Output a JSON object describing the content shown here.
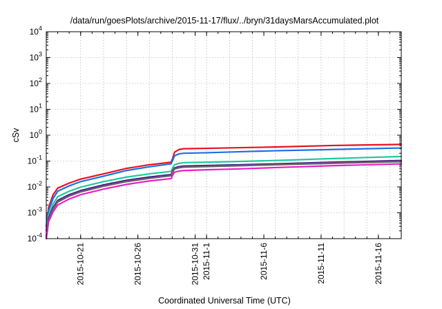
{
  "chart_data": {
    "type": "line",
    "title": "/data/run/goesPlots/archive/2015-11-17/flux/../bryn/31daysMarsAccumulated.plot",
    "xlabel": "Coordinated Universal Time (UTC)",
    "ylabel": "cSv",
    "yscale": "log",
    "ylim": [
      0.0001,
      10000
    ],
    "xlim": [
      0,
      31
    ],
    "y_ticks": [
      {
        "value": 0.0001,
        "base": "10",
        "exp": "-4"
      },
      {
        "value": 0.001,
        "base": "10",
        "exp": "-3"
      },
      {
        "value": 0.01,
        "base": "10",
        "exp": "-2"
      },
      {
        "value": 0.1,
        "base": "10",
        "exp": "-1"
      },
      {
        "value": 1,
        "base": "10",
        "exp": "0"
      },
      {
        "value": 10,
        "base": "10",
        "exp": "1"
      },
      {
        "value": 100,
        "base": "10",
        "exp": "2"
      },
      {
        "value": 1000,
        "base": "10",
        "exp": "3"
      },
      {
        "value": 10000,
        "base": "10",
        "exp": "4"
      }
    ],
    "x_ticks": [
      {
        "day": 3,
        "label": "2015-10-21"
      },
      {
        "day": 8,
        "label": "2015-10-26"
      },
      {
        "day": 13,
        "label": "2015-10-31"
      },
      {
        "day": 14,
        "label": "2015-11-1"
      },
      {
        "day": 19,
        "label": "2015-11-6"
      },
      {
        "day": 24,
        "label": "2015-11-11"
      },
      {
        "day": 29,
        "label": "2015-11-16"
      }
    ],
    "x_grid": [
      3,
      5,
      7,
      9,
      11,
      13,
      14,
      16,
      18,
      20,
      22,
      24,
      26,
      28,
      30
    ],
    "x_minor": [
      1,
      2,
      3,
      4,
      5,
      6,
      7,
      8,
      9,
      10,
      11,
      12,
      13,
      14,
      15,
      16,
      17,
      18,
      19,
      20,
      21,
      22,
      23,
      24,
      25,
      26,
      27,
      28,
      29,
      30
    ],
    "series": [
      {
        "name": "red",
        "color": "#e8101e",
        "x": [
          0,
          0.2,
          0.6,
          1,
          2,
          3,
          5,
          7,
          9,
          10.9,
          11.05,
          11.2,
          11.6,
          12,
          14,
          17,
          20,
          25,
          31
        ],
        "values": [
          0.0003,
          0.0016,
          0.005,
          0.009,
          0.014,
          0.02,
          0.032,
          0.052,
          0.072,
          0.09,
          0.13,
          0.22,
          0.28,
          0.3,
          0.31,
          0.33,
          0.35,
          0.4,
          0.44
        ]
      },
      {
        "name": "blue",
        "color": "#1a6ee8",
        "x": [
          0,
          0.2,
          0.6,
          1,
          2,
          3,
          5,
          7,
          9,
          10.9,
          11.05,
          11.2,
          11.6,
          12,
          14,
          17,
          20,
          25,
          31
        ],
        "values": [
          0.0002,
          0.0012,
          0.0036,
          0.0068,
          0.011,
          0.016,
          0.026,
          0.043,
          0.06,
          0.078,
          0.11,
          0.16,
          0.19,
          0.2,
          0.21,
          0.23,
          0.25,
          0.28,
          0.32
        ]
      },
      {
        "name": "teal",
        "color": "#1ec8a0",
        "x": [
          0,
          0.2,
          0.6,
          1,
          2,
          3,
          5,
          7,
          9,
          10.9,
          11.05,
          11.2,
          11.6,
          12,
          14,
          17,
          20,
          25,
          31
        ],
        "values": [
          0.00013,
          0.0008,
          0.0022,
          0.0042,
          0.0068,
          0.0098,
          0.016,
          0.024,
          0.032,
          0.04,
          0.055,
          0.072,
          0.082,
          0.086,
          0.09,
          0.097,
          0.105,
          0.125,
          0.15
        ]
      },
      {
        "name": "navy",
        "color": "#161c60",
        "x": [
          0,
          0.2,
          0.6,
          1,
          2,
          3,
          5,
          7,
          9,
          10.9,
          11.05,
          11.2,
          11.6,
          12,
          14,
          17,
          20,
          25,
          31
        ],
        "values": [
          0.00011,
          0.0006,
          0.0016,
          0.003,
          0.005,
          0.0072,
          0.012,
          0.018,
          0.024,
          0.03,
          0.042,
          0.054,
          0.061,
          0.064,
          0.067,
          0.072,
          0.078,
          0.09,
          0.105
        ]
      },
      {
        "name": "purple",
        "color": "#8c1eb4",
        "x": [
          0,
          0.2,
          0.6,
          1,
          2,
          3,
          5,
          7,
          9,
          10.9,
          11.05,
          11.2,
          11.6,
          12,
          14,
          17,
          20,
          25,
          31
        ],
        "values": [
          0.0001,
          0.00055,
          0.0015,
          0.0028,
          0.0047,
          0.0068,
          0.0112,
          0.017,
          0.0225,
          0.0285,
          0.04,
          0.051,
          0.058,
          0.061,
          0.064,
          0.069,
          0.075,
          0.086,
          0.1
        ]
      },
      {
        "name": "gray",
        "color": "#646464",
        "x": [
          0,
          0.2,
          0.6,
          1,
          2,
          3,
          5,
          7,
          9,
          10.9,
          11.05,
          11.2,
          11.6,
          12,
          14,
          17,
          20,
          25,
          31
        ],
        "values": [
          0.0001,
          0.0005,
          0.0014,
          0.0026,
          0.0044,
          0.0064,
          0.0106,
          0.016,
          0.0215,
          0.027,
          0.038,
          0.049,
          0.055,
          0.058,
          0.061,
          0.066,
          0.072,
          0.082,
          0.095
        ]
      },
      {
        "name": "magenta",
        "color": "#e81ec8",
        "x": [
          0,
          0.2,
          0.6,
          1,
          2,
          3,
          5,
          7,
          9,
          10.9,
          11.05,
          11.2,
          11.6,
          12,
          14,
          17,
          20,
          25,
          31
        ],
        "values": [
          0.0001,
          0.00045,
          0.0011,
          0.002,
          0.0034,
          0.005,
          0.0082,
          0.0125,
          0.017,
          0.021,
          0.029,
          0.037,
          0.041,
          0.043,
          0.046,
          0.05,
          0.056,
          0.066,
          0.078
        ]
      }
    ]
  }
}
